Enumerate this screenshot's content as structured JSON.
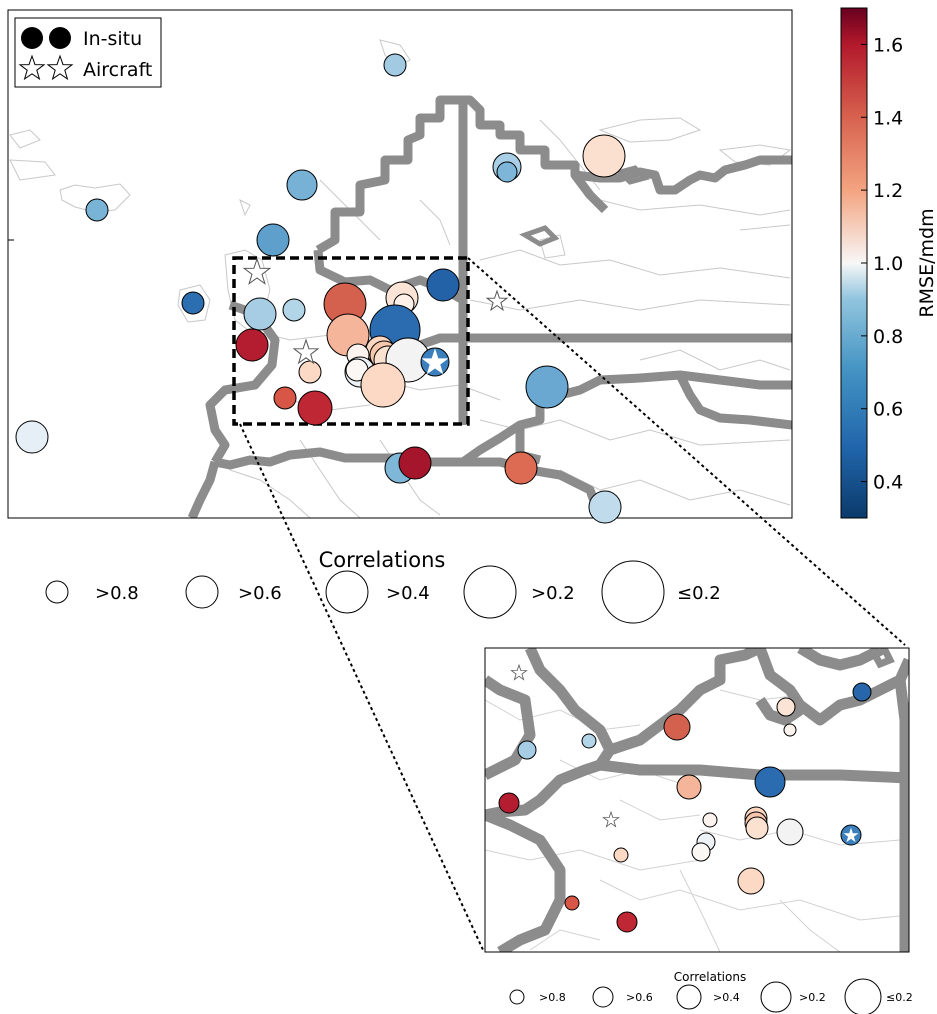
{
  "legend": {
    "insitu_label": "In-situ",
    "aircraft_label": "Aircraft"
  },
  "colorbar": {
    "label": "RMSE/mdm",
    "ticks": [
      "0.4",
      "0.6",
      "0.8",
      "1.0",
      "1.2",
      "1.4",
      "1.6"
    ],
    "tick_values": [
      0.4,
      0.6,
      0.8,
      1.0,
      1.2,
      1.4,
      1.6
    ],
    "range": [
      0.3,
      1.7
    ],
    "colors": [
      "#0b3a6b",
      "#2166ac",
      "#4393c3",
      "#92c5de",
      "#f7f7f7",
      "#f4a582",
      "#d6604d",
      "#b2182b",
      "#67001f"
    ]
  },
  "size_legend": {
    "title": "Correlations",
    "items": [
      ">0.8",
      ">0.6",
      ">0.4",
      ">0.2",
      "≤0.2"
    ]
  },
  "inset_legend": {
    "title": "Correlations",
    "items": [
      ">0.8",
      ">0.6",
      ">0.4",
      ">0.2",
      "≤0.2"
    ]
  },
  "colors": {
    "border": "#8c8c8c",
    "coast": "#c8c8c8",
    "stroke": "#000000"
  }
}
